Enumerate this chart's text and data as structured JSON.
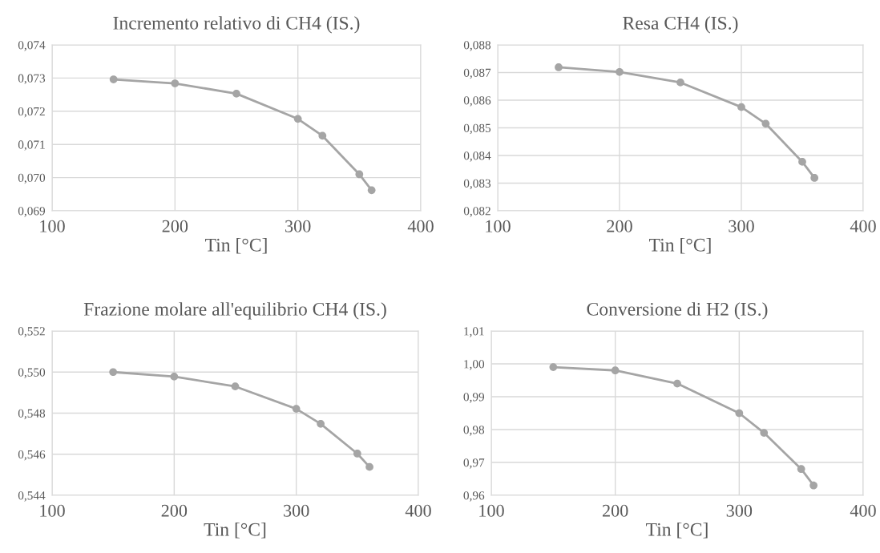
{
  "chart_data": [
    {
      "type": "line",
      "title": "Incremento relativo di CH4 (IS.)",
      "xlabel": "Tin [°C]",
      "x": [
        150,
        200,
        250,
        300,
        320,
        350,
        360
      ],
      "series": [
        {
          "color": "#a5a5a5",
          "values": [
            0.07296,
            0.07284,
            0.07253,
            0.07177,
            0.07126,
            0.0701,
            0.06962
          ]
        }
      ],
      "xlim": [
        100,
        400
      ],
      "xticks": [
        100,
        200,
        300,
        400
      ],
      "ylim": [
        0.069,
        0.074
      ],
      "yticks": [
        {
          "value": 0.069,
          "label": "0,069"
        },
        {
          "value": 0.07,
          "label": "0,070"
        },
        {
          "value": 0.071,
          "label": "0,071"
        },
        {
          "value": 0.072,
          "label": "0,072"
        },
        {
          "value": 0.073,
          "label": "0,073"
        },
        {
          "value": 0.074,
          "label": "0,074"
        }
      ],
      "grid": true,
      "marker": "circle",
      "line_style": "solid"
    },
    {
      "type": "line",
      "title": "Resa CH4 (IS.)",
      "xlabel": "Tin [°C]",
      "x": [
        150,
        200,
        250,
        300,
        320,
        350,
        360
      ],
      "series": [
        {
          "color": "#a5a5a5",
          "values": [
            0.08719,
            0.08702,
            0.08664,
            0.08575,
            0.08515,
            0.08377,
            0.08319
          ]
        }
      ],
      "xlim": [
        100,
        400
      ],
      "xticks": [
        100,
        200,
        300,
        400
      ],
      "ylim": [
        0.082,
        0.088
      ],
      "yticks": [
        {
          "value": 0.082,
          "label": "0,082"
        },
        {
          "value": 0.083,
          "label": "0,083"
        },
        {
          "value": 0.084,
          "label": "0,084"
        },
        {
          "value": 0.085,
          "label": "0,085"
        },
        {
          "value": 0.086,
          "label": "0,086"
        },
        {
          "value": 0.087,
          "label": "0,087"
        },
        {
          "value": 0.088,
          "label": "0,088"
        }
      ],
      "grid": true,
      "marker": "circle",
      "line_style": "solid"
    },
    {
      "type": "line",
      "title": "Frazione molare all'equilibrio CH4 (IS.)",
      "xlabel": "Tin [°C]",
      "x": [
        150,
        200,
        250,
        300,
        320,
        350,
        360
      ],
      "series": [
        {
          "color": "#a5a5a5",
          "values": [
            0.55,
            0.54978,
            0.5493,
            0.54821,
            0.54748,
            0.54603,
            0.54538
          ]
        }
      ],
      "xlim": [
        100,
        400
      ],
      "xticks": [
        100,
        200,
        300,
        400
      ],
      "ylim": [
        0.544,
        0.552
      ],
      "yticks": [
        {
          "value": 0.544,
          "label": "0,544"
        },
        {
          "value": 0.546,
          "label": "0,546"
        },
        {
          "value": 0.548,
          "label": "0,548"
        },
        {
          "value": 0.55,
          "label": "0,550"
        },
        {
          "value": 0.552,
          "label": "0,552"
        }
      ],
      "grid": true,
      "marker": "circle",
      "line_style": "solid"
    },
    {
      "type": "line",
      "title": "Conversione di H2 (IS.)",
      "xlabel": "Tin [°C]",
      "x": [
        150,
        200,
        250,
        300,
        320,
        350,
        360
      ],
      "series": [
        {
          "color": "#a5a5a5",
          "values": [
            0.999,
            0.998,
            0.994,
            0.985,
            0.979,
            0.968,
            0.963
          ]
        }
      ],
      "xlim": [
        100,
        400
      ],
      "xticks": [
        100,
        200,
        300,
        400
      ],
      "ylim": [
        0.96,
        1.01
      ],
      "yticks": [
        {
          "value": 0.96,
          "label": "0,96"
        },
        {
          "value": 0.97,
          "label": "0,97"
        },
        {
          "value": 0.98,
          "label": "0,98"
        },
        {
          "value": 0.99,
          "label": "0,99"
        },
        {
          "value": 1.0,
          "label": "1,00"
        },
        {
          "value": 1.01,
          "label": "1,01"
        }
      ],
      "grid": true,
      "marker": "circle",
      "line_style": "solid"
    }
  ]
}
